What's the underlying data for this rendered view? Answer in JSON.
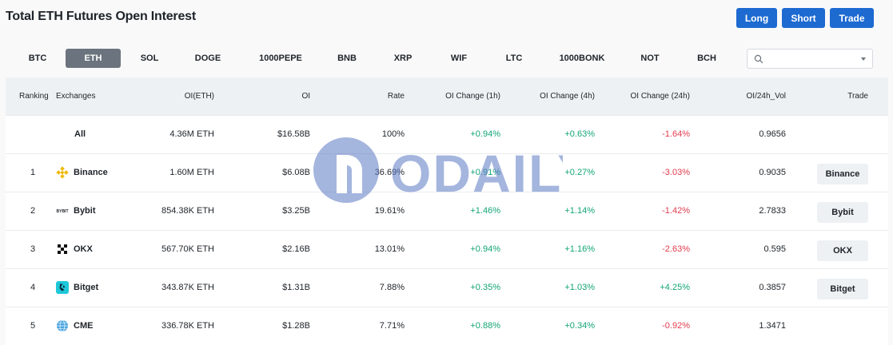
{
  "header": {
    "title": "Total ETH Futures Open Interest",
    "buttons": {
      "long": "Long",
      "short": "Short",
      "trade": "Trade"
    },
    "accent_color": "#1d6ad1"
  },
  "tabs": {
    "items": [
      "BTC",
      "ETH",
      "SOL",
      "DOGE",
      "1000PEPE",
      "BNB",
      "XRP",
      "WIF",
      "LTC",
      "1000BONK",
      "NOT",
      "BCH"
    ],
    "active": "ETH"
  },
  "search": {
    "value": "",
    "placeholder": ""
  },
  "table": {
    "columns": {
      "ranking": "Ranking",
      "exchanges": "Exchanges",
      "oi_eth": "OI(ETH)",
      "oi": "OI",
      "rate": "Rate",
      "chg_1h": "OI Change (1h)",
      "chg_4h": "OI Change (4h)",
      "chg_24h": "OI Change (24h)",
      "oi_vol": "OI/24h_Vol",
      "trade": "Trade"
    },
    "rows": [
      {
        "rank": "",
        "exchange": "All",
        "icon": "none",
        "oi_eth": "4.36M ETH",
        "oi": "$16.58B",
        "rate": "100%",
        "chg_1h": "+0.94%",
        "chg_4h": "+0.63%",
        "chg_24h": "-1.64%",
        "oi_vol": "0.9656",
        "trade": ""
      },
      {
        "rank": "1",
        "exchange": "Binance",
        "icon": "binance-icon",
        "oi_eth": "1.60M ETH",
        "oi": "$6.08B",
        "rate": "36.69%",
        "chg_1h": "+0.91%",
        "chg_4h": "+0.27%",
        "chg_24h": "-3.03%",
        "oi_vol": "0.9035",
        "trade": "Binance"
      },
      {
        "rank": "2",
        "exchange": "Bybit",
        "icon": "bybit-icon",
        "oi_eth": "854.38K ETH",
        "oi": "$3.25B",
        "rate": "19.61%",
        "chg_1h": "+1.46%",
        "chg_4h": "+1.14%",
        "chg_24h": "-1.42%",
        "oi_vol": "2.7833",
        "trade": "Bybit"
      },
      {
        "rank": "3",
        "exchange": "OKX",
        "icon": "okx-icon",
        "oi_eth": "567.70K ETH",
        "oi": "$2.16B",
        "rate": "13.01%",
        "chg_1h": "+0.94%",
        "chg_4h": "+1.16%",
        "chg_24h": "-2.63%",
        "oi_vol": "0.595",
        "trade": "OKX"
      },
      {
        "rank": "4",
        "exchange": "Bitget",
        "icon": "bitget-icon",
        "oi_eth": "343.87K ETH",
        "oi": "$1.31B",
        "rate": "7.88%",
        "chg_1h": "+0.35%",
        "chg_4h": "+1.03%",
        "chg_24h": "+4.25%",
        "oi_vol": "0.3857",
        "trade": "Bitget"
      },
      {
        "rank": "5",
        "exchange": "CME",
        "icon": "cme-icon",
        "oi_eth": "336.78K ETH",
        "oi": "$1.28B",
        "rate": "7.71%",
        "chg_1h": "+0.88%",
        "chg_4h": "+0.34%",
        "chg_24h": "-0.92%",
        "oi_vol": "1.3471",
        "trade": ""
      }
    ],
    "colors": {
      "positive": "#12a476",
      "negative": "#e23b4d"
    }
  },
  "watermark": {
    "text": "ODAILY"
  }
}
